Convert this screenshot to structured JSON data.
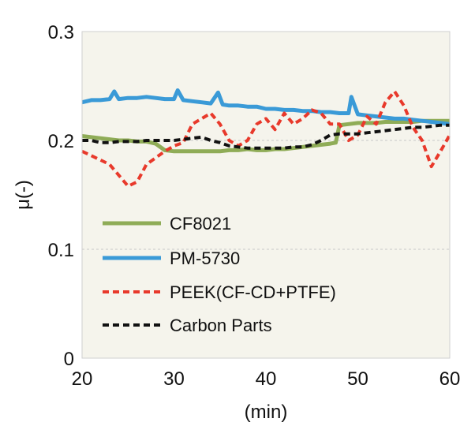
{
  "chart_data": {
    "type": "line",
    "title": "",
    "xlabel": "(min)",
    "ylabel": "μ(-)",
    "xlim": [
      20,
      60
    ],
    "ylim": [
      0,
      0.3
    ],
    "xticks": [
      "20",
      "30",
      "40",
      "50",
      "60"
    ],
    "yticks": [
      "0",
      "0.1",
      "0.2",
      "0.3"
    ],
    "grid": "dotted horizontal at 0.1 and 0.2",
    "legend_placement": "lower-left",
    "colors": {
      "background": "#f5f4ec",
      "gridline": "#c8c8c8"
    },
    "series": [
      {
        "name": "CF8021",
        "color": "#8fac57",
        "dash": "solid",
        "x": [
          20,
          21,
          22,
          23,
          24,
          25,
          26,
          27,
          28,
          29,
          30,
          31,
          32,
          33,
          34,
          35,
          36,
          37,
          38,
          39,
          40,
          41,
          42,
          43,
          44,
          45,
          46,
          47,
          47.6,
          48,
          49,
          50,
          51,
          52,
          53,
          54,
          55,
          56,
          57,
          58,
          59,
          60
        ],
        "y": [
          0.204,
          0.203,
          0.202,
          0.201,
          0.2,
          0.2,
          0.199,
          0.199,
          0.197,
          0.191,
          0.19,
          0.19,
          0.19,
          0.19,
          0.19,
          0.19,
          0.191,
          0.191,
          0.192,
          0.191,
          0.191,
          0.192,
          0.192,
          0.193,
          0.194,
          0.195,
          0.196,
          0.197,
          0.198,
          0.214,
          0.215,
          0.216,
          0.216,
          0.216,
          0.217,
          0.217,
          0.217,
          0.217,
          0.218,
          0.218,
          0.218,
          0.218
        ]
      },
      {
        "name": "PM-5730",
        "color": "#3a9ad7",
        "dash": "solid",
        "x": [
          20,
          21,
          22,
          23,
          23.5,
          24,
          25,
          26,
          27,
          28,
          29,
          30,
          30.4,
          31,
          32,
          33,
          34,
          34.8,
          35.3,
          36,
          37,
          38,
          39,
          40,
          41,
          42,
          43,
          44,
          45,
          46,
          47,
          48,
          49,
          49.3,
          50,
          51,
          52,
          53,
          54,
          55,
          56,
          57,
          58,
          59,
          60
        ],
        "y": [
          0.235,
          0.237,
          0.237,
          0.238,
          0.245,
          0.238,
          0.239,
          0.239,
          0.24,
          0.239,
          0.238,
          0.238,
          0.246,
          0.237,
          0.236,
          0.235,
          0.234,
          0.244,
          0.233,
          0.232,
          0.232,
          0.231,
          0.231,
          0.229,
          0.229,
          0.228,
          0.228,
          0.227,
          0.227,
          0.226,
          0.226,
          0.225,
          0.225,
          0.24,
          0.224,
          0.223,
          0.222,
          0.221,
          0.22,
          0.22,
          0.219,
          0.218,
          0.217,
          0.216,
          0.215
        ]
      },
      {
        "name": "PEEK(CF-CD+PTFE)",
        "color": "#e8392b",
        "dash": "dashed",
        "x": [
          20,
          21,
          22,
          23,
          24,
          25,
          26,
          27,
          28,
          29,
          30,
          31,
          32,
          33,
          34,
          35,
          36,
          37,
          38,
          39,
          40,
          41,
          42,
          43,
          44,
          45,
          46,
          47,
          48,
          49,
          50,
          51,
          52,
          53,
          54,
          55,
          56,
          57,
          58,
          59,
          60
        ],
        "y": [
          0.19,
          0.186,
          0.182,
          0.178,
          0.168,
          0.158,
          0.162,
          0.178,
          0.184,
          0.19,
          0.195,
          0.198,
          0.215,
          0.22,
          0.225,
          0.215,
          0.2,
          0.195,
          0.2,
          0.215,
          0.22,
          0.21,
          0.225,
          0.215,
          0.22,
          0.228,
          0.225,
          0.215,
          0.215,
          0.2,
          0.205,
          0.222,
          0.215,
          0.235,
          0.245,
          0.232,
          0.212,
          0.2,
          0.176,
          0.19,
          0.205
        ]
      },
      {
        "name": "Carbon Parts",
        "color": "#111111",
        "dash": "dashed",
        "x": [
          20,
          21,
          22,
          23,
          24,
          25,
          26,
          27,
          28,
          29,
          30,
          31,
          32,
          33,
          34,
          35,
          36,
          37,
          38,
          39,
          40,
          41,
          42,
          43,
          44,
          45,
          46,
          47,
          48,
          49,
          50,
          51,
          52,
          53,
          54,
          55,
          56,
          57,
          58,
          59,
          60
        ],
        "y": [
          0.2,
          0.2,
          0.198,
          0.198,
          0.199,
          0.199,
          0.199,
          0.2,
          0.2,
          0.2,
          0.2,
          0.201,
          0.202,
          0.203,
          0.2,
          0.198,
          0.195,
          0.194,
          0.193,
          0.193,
          0.193,
          0.193,
          0.193,
          0.194,
          0.194,
          0.196,
          0.2,
          0.205,
          0.206,
          0.206,
          0.206,
          0.207,
          0.208,
          0.209,
          0.21,
          0.211,
          0.212,
          0.212,
          0.213,
          0.214,
          0.214
        ]
      }
    ]
  }
}
